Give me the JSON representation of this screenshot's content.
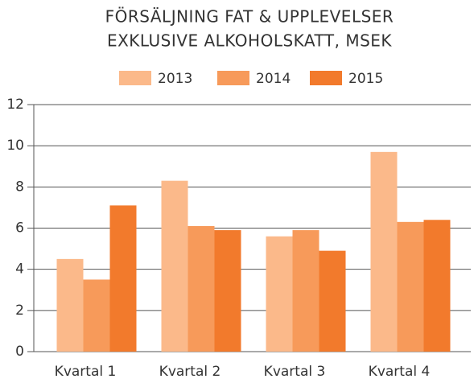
{
  "chart_data": {
    "type": "bar",
    "title": [
      "FÖRSÄLJNING FAT & UPPLEVELSER",
      "EXKLUSIVE ALKOHOLSKATT, MSEK"
    ],
    "categories": [
      "Kvartal 1",
      "Kvartal 2",
      "Kvartal 3",
      "Kvartal 4"
    ],
    "series": [
      {
        "name": "2013",
        "color": "#fbb98a",
        "values": [
          4.5,
          8.3,
          5.6,
          9.7
        ]
      },
      {
        "name": "2014",
        "color": "#f79a5a",
        "values": [
          3.5,
          6.1,
          5.9,
          6.3
        ]
      },
      {
        "name": "2015",
        "color": "#f27a2c",
        "values": [
          7.1,
          5.9,
          4.9,
          6.4
        ]
      }
    ],
    "ylim": [
      0,
      12
    ],
    "yticks": [
      0,
      2,
      4,
      6,
      8,
      10,
      12
    ],
    "grid": true,
    "legend": "top"
  }
}
